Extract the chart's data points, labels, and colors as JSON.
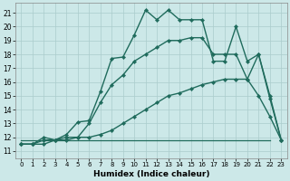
{
  "xlabel": "Humidex (Indice chaleur)",
  "bg_color": "#cce8e8",
  "grid_color": "#aacccc",
  "line_color": "#1f6b5c",
  "xlim": [
    -0.5,
    23.5
  ],
  "ylim": [
    10.5,
    21.7
  ],
  "xtick_vals": [
    0,
    1,
    2,
    3,
    4,
    5,
    6,
    7,
    8,
    9,
    10,
    11,
    12,
    13,
    14,
    15,
    16,
    17,
    18,
    19,
    20,
    21,
    22,
    23
  ],
  "ytick_vals": [
    11,
    12,
    13,
    14,
    15,
    16,
    17,
    18,
    19,
    20,
    21
  ],
  "curve_flat_x": [
    0,
    1,
    2,
    3,
    4,
    5,
    6,
    7,
    8,
    9,
    10,
    11,
    12,
    13,
    14,
    15,
    16,
    17,
    18,
    19,
    20,
    21,
    22
  ],
  "curve_flat_y": [
    11.8,
    11.8,
    11.8,
    11.8,
    11.8,
    11.8,
    11.8,
    11.8,
    11.8,
    11.8,
    11.8,
    11.8,
    11.8,
    11.8,
    11.8,
    11.8,
    11.8,
    11.8,
    11.8,
    11.8,
    11.8,
    11.8,
    11.8
  ],
  "curve_main_x": [
    0,
    1,
    2,
    3,
    4,
    5,
    6,
    7,
    8,
    9,
    10,
    11,
    12,
    13,
    14,
    15,
    16,
    17,
    18,
    19,
    20,
    21,
    22,
    23
  ],
  "curve_main_y": [
    11.5,
    11.5,
    12.0,
    11.8,
    12.2,
    13.1,
    13.2,
    15.3,
    17.7,
    17.8,
    19.4,
    21.2,
    20.5,
    21.2,
    20.5,
    20.5,
    20.5,
    17.5,
    17.5,
    20.0,
    17.5,
    18.0,
    14.8,
    11.8
  ],
  "curve_mid_x": [
    0,
    1,
    2,
    3,
    4,
    5,
    6,
    7,
    8,
    9,
    10,
    11,
    12,
    13,
    14,
    15,
    16,
    17,
    18,
    19,
    20,
    21,
    22,
    23
  ],
  "curve_mid_y": [
    11.5,
    11.5,
    11.8,
    11.8,
    12.0,
    12.0,
    13.0,
    14.5,
    15.8,
    16.5,
    17.5,
    18.0,
    18.5,
    19.0,
    19.0,
    19.2,
    19.2,
    18.0,
    18.0,
    18.0,
    16.2,
    18.0,
    15.0,
    11.8
  ],
  "curve_low_x": [
    0,
    1,
    2,
    3,
    4,
    5,
    6,
    7,
    8,
    9,
    10,
    11,
    12,
    13,
    14,
    15,
    16,
    17,
    18,
    19,
    20,
    21,
    22,
    23
  ],
  "curve_low_y": [
    11.5,
    11.5,
    11.5,
    11.8,
    11.8,
    12.0,
    12.0,
    12.2,
    12.5,
    13.0,
    13.5,
    14.0,
    14.5,
    15.0,
    15.2,
    15.5,
    15.8,
    16.0,
    16.2,
    16.2,
    16.2,
    15.0,
    13.5,
    11.8
  ]
}
